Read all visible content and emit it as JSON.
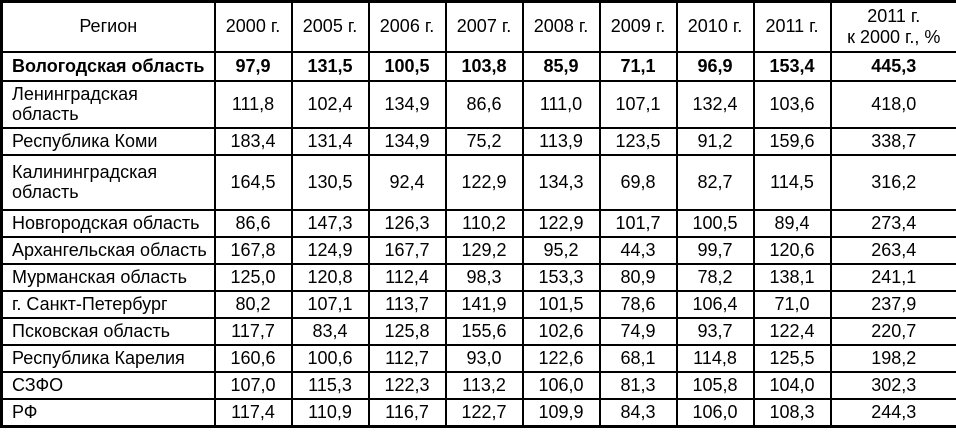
{
  "table": {
    "header": {
      "region": "Регион",
      "years": [
        "2000 г.",
        "2005 г.",
        "2006 г.",
        "2007 г.",
        "2008 г.",
        "2009 г.",
        "2010 г.",
        "2011 г."
      ],
      "ratio_line1": "2011 г.",
      "ratio_line2": "к 2000 г., %"
    },
    "rows": [
      {
        "region": "Вологодская область",
        "bold": true,
        "tall": false,
        "values": [
          "97,9",
          "131,5",
          "100,5",
          "103,8",
          "85,9",
          "71,1",
          "96,9",
          "153,4",
          "445,3"
        ]
      },
      {
        "region": "Ленинградская область",
        "bold": false,
        "tall": false,
        "values": [
          "111,8",
          "102,4",
          "134,9",
          "86,6",
          "111,0",
          "107,1",
          "132,4",
          "103,6",
          "418,0"
        ]
      },
      {
        "region": "Республика Коми",
        "bold": false,
        "tall": false,
        "values": [
          "183,4",
          "131,4",
          "134,9",
          "75,2",
          "113,9",
          "123,5",
          "91,2",
          "159,6",
          "338,7"
        ]
      },
      {
        "region": "Калининградская область",
        "bold": false,
        "tall": true,
        "values": [
          "164,5",
          "130,5",
          "92,4",
          "122,9",
          "134,3",
          "69,8",
          "82,7",
          "114,5",
          "316,2"
        ]
      },
      {
        "region": "Новгородская область",
        "bold": false,
        "tall": false,
        "values": [
          "86,6",
          "147,3",
          "126,3",
          "110,2",
          "122,9",
          "101,7",
          "100,5",
          "89,4",
          "273,4"
        ]
      },
      {
        "region": "Архангельская область",
        "bold": false,
        "tall": false,
        "values": [
          "167,8",
          "124,9",
          "167,7",
          "129,2",
          "95,2",
          "44,3",
          "99,7",
          "120,6",
          "263,4"
        ]
      },
      {
        "region": "Мурманская область",
        "bold": false,
        "tall": false,
        "values": [
          "125,0",
          "120,8",
          "112,4",
          "98,3",
          "153,3",
          "80,9",
          "78,2",
          "138,1",
          "241,1"
        ]
      },
      {
        "region": "г. Санкт-Петербург",
        "bold": false,
        "tall": false,
        "values": [
          "80,2",
          "107,1",
          "113,7",
          "141,9",
          "101,5",
          "78,6",
          "106,4",
          "71,0",
          "237,9"
        ]
      },
      {
        "region": "Псковская область",
        "bold": false,
        "tall": false,
        "values": [
          "117,7",
          "83,4",
          "125,8",
          "155,6",
          "102,6",
          "74,9",
          "93,7",
          "122,4",
          "220,7"
        ]
      },
      {
        "region": "Республика Карелия",
        "bold": false,
        "tall": false,
        "values": [
          "160,6",
          "100,6",
          "112,7",
          "93,0",
          "122,6",
          "68,1",
          "114,8",
          "125,5",
          "198,2"
        ]
      },
      {
        "region": "СЗФО",
        "bold": false,
        "tall": false,
        "values": [
          "107,0",
          "115,3",
          "122,3",
          "113,2",
          "106,0",
          "81,3",
          "105,8",
          "104,0",
          "302,3"
        ]
      },
      {
        "region": "РФ",
        "bold": false,
        "tall": false,
        "values": [
          "117,4",
          "110,9",
          "116,7",
          "122,7",
          "109,9",
          "84,3",
          "106,0",
          "108,3",
          "244,3"
        ]
      }
    ]
  }
}
